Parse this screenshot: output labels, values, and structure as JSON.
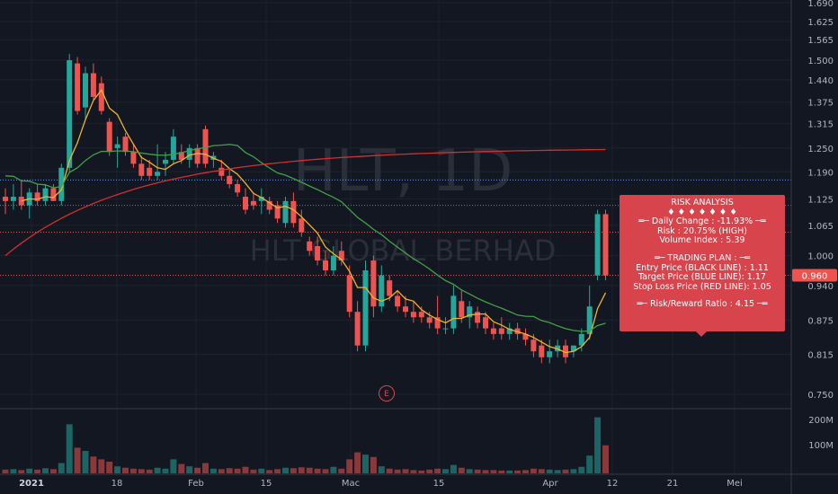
{
  "watermark": {
    "symbol": "HLT, 1D",
    "company": "HLT GLOBAL BERHAD"
  },
  "colors": {
    "up": "#26a69a",
    "down": "#ef5350",
    "ma_short": "#f0b429",
    "ma_mid": "#43a047",
    "ma_long": "#d32f2f",
    "current_price_bg": "#ef5350"
  },
  "chart_data": {
    "type": "candlestick",
    "price_axis_ticks": [
      "1.690",
      "1.625",
      "1.565",
      "1.500",
      "1.440",
      "1.375",
      "1.315",
      "1.250",
      "1.190",
      "1.125",
      "1.065",
      "1.000",
      "0.940",
      "0.875",
      "0.815",
      "0.750"
    ],
    "price_range": [
      0.72,
      1.7
    ],
    "time_axis_labels": [
      "2021",
      "18",
      "Feb",
      "15",
      "Mac",
      "15",
      "Apr",
      "12",
      "21",
      "Mei"
    ],
    "volume_axis_ticks": [
      "200M",
      "100M"
    ],
    "current_price": "0.960",
    "reference_lines": {
      "entry": 1.11,
      "target": 1.17,
      "stop_loss": 1.05
    },
    "candles": [
      {
        "o": 1.13,
        "h": 1.15,
        "l": 1.09,
        "c": 1.12,
        "v": 8
      },
      {
        "o": 1.12,
        "h": 1.16,
        "l": 1.1,
        "c": 1.13,
        "v": 9
      },
      {
        "o": 1.13,
        "h": 1.17,
        "l": 1.1,
        "c": 1.11,
        "v": 7
      },
      {
        "o": 1.11,
        "h": 1.15,
        "l": 1.08,
        "c": 1.14,
        "v": 10
      },
      {
        "o": 1.14,
        "h": 1.16,
        "l": 1.11,
        "c": 1.12,
        "v": 8
      },
      {
        "o": 1.12,
        "h": 1.16,
        "l": 1.11,
        "c": 1.15,
        "v": 11
      },
      {
        "o": 1.15,
        "h": 1.16,
        "l": 1.12,
        "c": 1.12,
        "v": 9
      },
      {
        "o": 1.12,
        "h": 1.21,
        "l": 1.11,
        "c": 1.2,
        "v": 22
      },
      {
        "o": 1.2,
        "h": 1.52,
        "l": 1.19,
        "c": 1.5,
        "v": 105
      },
      {
        "o": 1.49,
        "h": 1.51,
        "l": 1.34,
        "c": 1.35,
        "v": 55
      },
      {
        "o": 1.36,
        "h": 1.48,
        "l": 1.33,
        "c": 1.46,
        "v": 48
      },
      {
        "o": 1.46,
        "h": 1.49,
        "l": 1.38,
        "c": 1.39,
        "v": 36
      },
      {
        "o": 1.43,
        "h": 1.45,
        "l": 1.34,
        "c": 1.35,
        "v": 30
      },
      {
        "o": 1.32,
        "h": 1.33,
        "l": 1.23,
        "c": 1.24,
        "v": 25
      },
      {
        "o": 1.25,
        "h": 1.28,
        "l": 1.2,
        "c": 1.26,
        "v": 15
      },
      {
        "o": 1.28,
        "h": 1.29,
        "l": 1.23,
        "c": 1.24,
        "v": 12
      },
      {
        "o": 1.24,
        "h": 1.26,
        "l": 1.2,
        "c": 1.21,
        "v": 10
      },
      {
        "o": 1.21,
        "h": 1.23,
        "l": 1.17,
        "c": 1.18,
        "v": 9
      },
      {
        "o": 1.2,
        "h": 1.22,
        "l": 1.17,
        "c": 1.18,
        "v": 8
      },
      {
        "o": 1.18,
        "h": 1.26,
        "l": 1.17,
        "c": 1.19,
        "v": 12
      },
      {
        "o": 1.21,
        "h": 1.24,
        "l": 1.18,
        "c": 1.22,
        "v": 10
      },
      {
        "o": 1.22,
        "h": 1.3,
        "l": 1.21,
        "c": 1.28,
        "v": 30
      },
      {
        "o": 1.24,
        "h": 1.26,
        "l": 1.21,
        "c": 1.22,
        "v": 20
      },
      {
        "o": 1.22,
        "h": 1.26,
        "l": 1.2,
        "c": 1.25,
        "v": 15
      },
      {
        "o": 1.25,
        "h": 1.26,
        "l": 1.2,
        "c": 1.21,
        "v": 12
      },
      {
        "o": 1.3,
        "h": 1.31,
        "l": 1.2,
        "c": 1.21,
        "v": 22
      },
      {
        "o": 1.22,
        "h": 1.24,
        "l": 1.2,
        "c": 1.23,
        "v": 10
      },
      {
        "o": 1.2,
        "h": 1.22,
        "l": 1.17,
        "c": 1.18,
        "v": 9
      },
      {
        "o": 1.18,
        "h": 1.2,
        "l": 1.15,
        "c": 1.16,
        "v": 11
      },
      {
        "o": 1.16,
        "h": 1.17,
        "l": 1.13,
        "c": 1.14,
        "v": 10
      },
      {
        "o": 1.13,
        "h": 1.15,
        "l": 1.09,
        "c": 1.1,
        "v": 14
      },
      {
        "o": 1.12,
        "h": 1.14,
        "l": 1.1,
        "c": 1.11,
        "v": 8
      },
      {
        "o": 1.12,
        "h": 1.15,
        "l": 1.09,
        "c": 1.13,
        "v": 10
      },
      {
        "o": 1.12,
        "h": 1.13,
        "l": 1.09,
        "c": 1.1,
        "v": 7
      },
      {
        "o": 1.11,
        "h": 1.12,
        "l": 1.07,
        "c": 1.08,
        "v": 9
      },
      {
        "o": 1.07,
        "h": 1.13,
        "l": 1.06,
        "c": 1.12,
        "v": 12
      },
      {
        "o": 1.12,
        "h": 1.14,
        "l": 1.06,
        "c": 1.07,
        "v": 11
      },
      {
        "o": 1.08,
        "h": 1.1,
        "l": 1.04,
        "c": 1.05,
        "v": 13
      },
      {
        "o": 1.03,
        "h": 1.04,
        "l": 1.0,
        "c": 1.01,
        "v": 12
      },
      {
        "o": 1.02,
        "h": 1.04,
        "l": 0.98,
        "c": 0.99,
        "v": 10
      },
      {
        "o": 0.99,
        "h": 1.01,
        "l": 0.96,
        "c": 0.97,
        "v": 9
      },
      {
        "o": 0.97,
        "h": 1.02,
        "l": 0.96,
        "c": 1.0,
        "v": 14
      },
      {
        "o": 1.01,
        "h": 1.03,
        "l": 0.98,
        "c": 0.99,
        "v": 10
      },
      {
        "o": 0.96,
        "h": 0.98,
        "l": 0.88,
        "c": 0.89,
        "v": 30
      },
      {
        "o": 0.89,
        "h": 0.91,
        "l": 0.82,
        "c": 0.83,
        "v": 45
      },
      {
        "o": 0.83,
        "h": 0.99,
        "l": 0.82,
        "c": 0.97,
        "v": 40
      },
      {
        "o": 0.99,
        "h": 1.0,
        "l": 0.88,
        "c": 0.9,
        "v": 35
      },
      {
        "o": 0.9,
        "h": 0.98,
        "l": 0.89,
        "c": 0.96,
        "v": 15
      },
      {
        "o": 0.95,
        "h": 0.96,
        "l": 0.91,
        "c": 0.92,
        "v": 10
      },
      {
        "o": 0.92,
        "h": 0.93,
        "l": 0.89,
        "c": 0.9,
        "v": 8
      },
      {
        "o": 0.9,
        "h": 0.92,
        "l": 0.88,
        "c": 0.89,
        "v": 9
      },
      {
        "o": 0.89,
        "h": 0.91,
        "l": 0.87,
        "c": 0.88,
        "v": 7
      },
      {
        "o": 0.89,
        "h": 0.9,
        "l": 0.87,
        "c": 0.88,
        "v": 6
      },
      {
        "o": 0.88,
        "h": 0.89,
        "l": 0.86,
        "c": 0.87,
        "v": 8
      },
      {
        "o": 0.88,
        "h": 0.92,
        "l": 0.85,
        "c": 0.86,
        "v": 10
      },
      {
        "o": 0.86,
        "h": 0.88,
        "l": 0.85,
        "c": 0.86,
        "v": 9
      },
      {
        "o": 0.86,
        "h": 0.94,
        "l": 0.85,
        "c": 0.92,
        "v": 18
      },
      {
        "o": 0.91,
        "h": 0.93,
        "l": 0.87,
        "c": 0.88,
        "v": 12
      },
      {
        "o": 0.88,
        "h": 0.91,
        "l": 0.86,
        "c": 0.9,
        "v": 9
      },
      {
        "o": 0.89,
        "h": 0.9,
        "l": 0.86,
        "c": 0.87,
        "v": 8
      },
      {
        "o": 0.88,
        "h": 0.89,
        "l": 0.85,
        "c": 0.86,
        "v": 7
      },
      {
        "o": 0.86,
        "h": 0.87,
        "l": 0.84,
        "c": 0.85,
        "v": 7
      },
      {
        "o": 0.86,
        "h": 0.88,
        "l": 0.84,
        "c": 0.85,
        "v": 6
      },
      {
        "o": 0.85,
        "h": 0.87,
        "l": 0.84,
        "c": 0.86,
        "v": 6
      },
      {
        "o": 0.86,
        "h": 0.87,
        "l": 0.84,
        "c": 0.85,
        "v": 6
      },
      {
        "o": 0.85,
        "h": 0.86,
        "l": 0.83,
        "c": 0.84,
        "v": 7
      },
      {
        "o": 0.84,
        "h": 0.85,
        "l": 0.81,
        "c": 0.82,
        "v": 10
      },
      {
        "o": 0.83,
        "h": 0.84,
        "l": 0.8,
        "c": 0.81,
        "v": 9
      },
      {
        "o": 0.81,
        "h": 0.84,
        "l": 0.8,
        "c": 0.82,
        "v": 8
      },
      {
        "o": 0.82,
        "h": 0.84,
        "l": 0.81,
        "c": 0.83,
        "v": 7
      },
      {
        "o": 0.83,
        "h": 0.84,
        "l": 0.8,
        "c": 0.81,
        "v": 8
      },
      {
        "o": 0.82,
        "h": 0.83,
        "l": 0.81,
        "c": 0.83,
        "v": 9
      },
      {
        "o": 0.83,
        "h": 0.86,
        "l": 0.82,
        "c": 0.85,
        "v": 14
      },
      {
        "o": 0.85,
        "h": 0.94,
        "l": 0.84,
        "c": 0.9,
        "v": 38
      },
      {
        "o": 0.96,
        "h": 1.1,
        "l": 0.95,
        "c": 1.09,
        "v": 120
      },
      {
        "o": 1.09,
        "h": 1.1,
        "l": 0.95,
        "c": 0.96,
        "v": 60
      }
    ]
  },
  "risk_analysis": {
    "title": "RISK ANALYSIS",
    "diamonds": "♦ ♦ ♦ ♦ ♦ ♦ ♦",
    "daily_change": "═─ Daily Change : -11.93% ─═",
    "risk": "Risk : 20.75% (HIGH)",
    "volume_index": "Volume Index : 5.39",
    "trading_plan": "═─ TRADING PLAN : ─═",
    "entry": "Entry Price (BLACK LINE) : 1.11",
    "target": "Target Price (BLUE LINE): 1.17",
    "stop_loss": "Stop Loss Price (RED LINE): 1.05",
    "rr_ratio": "═─ Risk/Reward Ratio : 4.15 ─═"
  },
  "earnings_marker": "E"
}
